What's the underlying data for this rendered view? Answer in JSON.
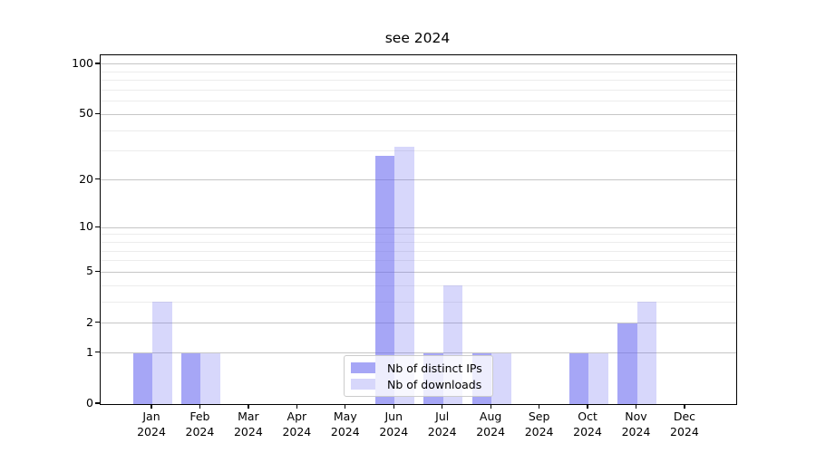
{
  "chart_data": {
    "type": "bar",
    "title": "see 2024",
    "categories": [
      "Jan 2024",
      "Feb 2024",
      "Mar 2024",
      "Apr 2024",
      "May 2024",
      "Jun 2024",
      "Jul 2024",
      "Aug 2024",
      "Sep 2024",
      "Oct 2024",
      "Nov 2024",
      "Dec 2024"
    ],
    "series": [
      {
        "name": "Nb of distinct IPs",
        "color": "rgba(102,102,240,0.58)",
        "values": [
          1,
          1,
          0,
          0,
          0,
          28,
          1,
          1,
          0,
          1,
          2,
          0
        ]
      },
      {
        "name": "Nb of downloads",
        "color": "rgba(102,102,240,0.26)",
        "values": [
          3,
          1,
          0,
          0,
          0,
          32,
          4,
          1,
          0,
          1,
          3,
          0
        ]
      }
    ],
    "xlabel": "",
    "ylabel": "",
    "yscale": "log1p",
    "ylim": [
      0,
      113
    ],
    "y_major_ticks": [
      0,
      1,
      2,
      5,
      10,
      20,
      50,
      100
    ],
    "y_minor_ticks": [
      3,
      4,
      6,
      7,
      8,
      9,
      30,
      40,
      60,
      70,
      80,
      90
    ],
    "grid": true,
    "legend_position": "lower center"
  }
}
